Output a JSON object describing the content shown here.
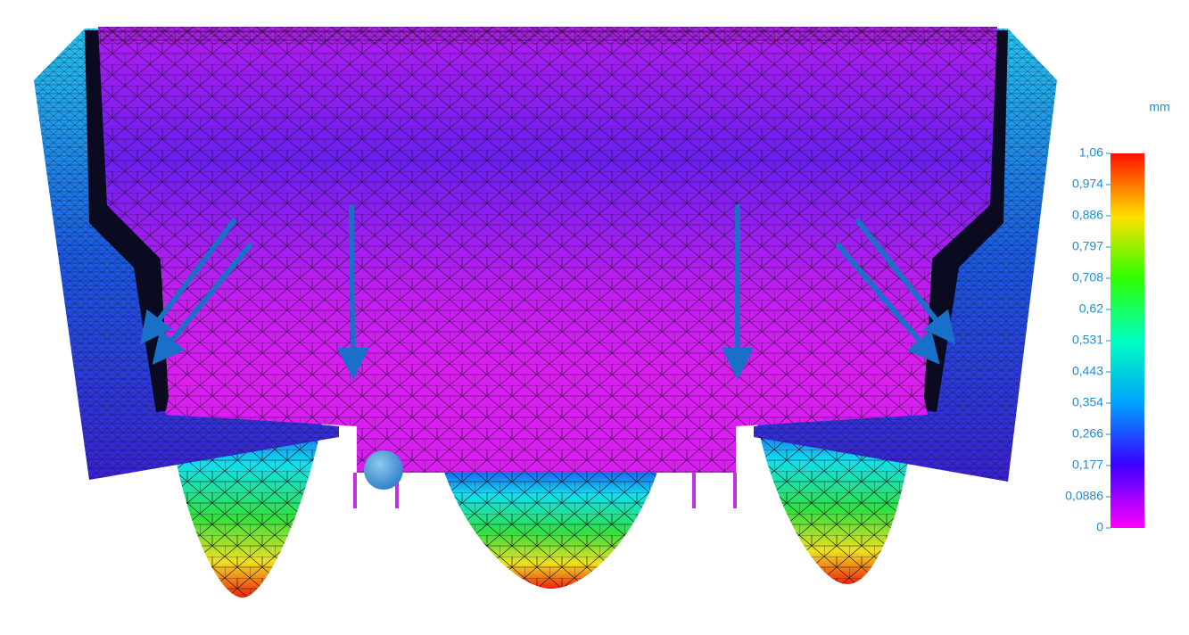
{
  "legend": {
    "unit": "mm",
    "labels": [
      "1,06",
      "0,974",
      "0,886",
      "0,797",
      "0,708",
      "0,62",
      "0,531",
      "0,443",
      "0,354",
      "0,266",
      "0,177",
      "0,0886",
      "0"
    ]
  }
}
